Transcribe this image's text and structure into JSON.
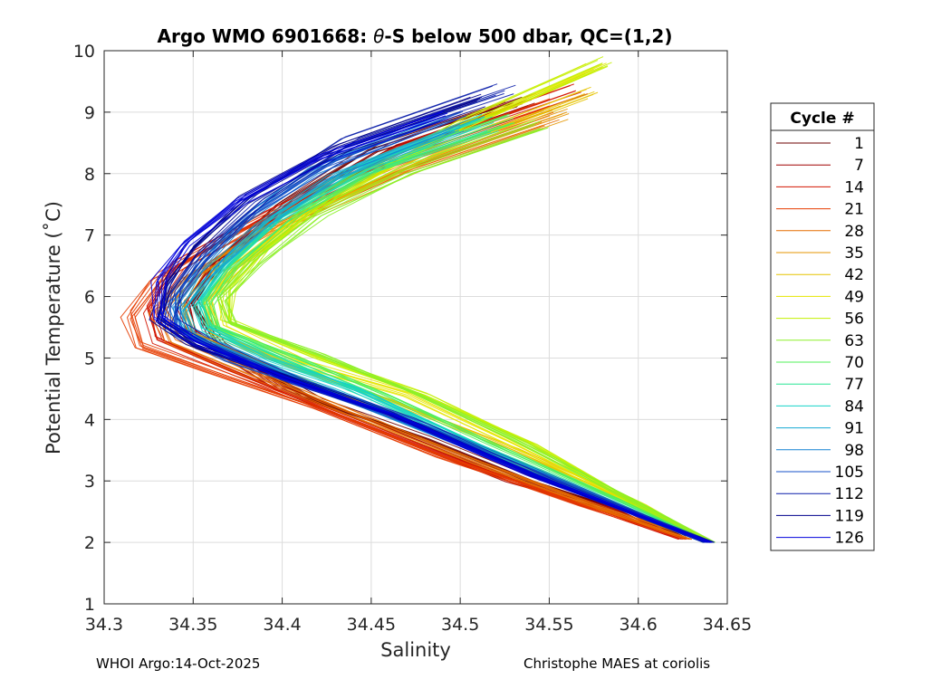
{
  "chart_data": {
    "type": "line",
    "title": "Argo WMO 6901668: θ-S below 500 dbar,  QC=(1,2)",
    "title_prefix": "Argo WMO 6901668: ",
    "title_theta": "θ",
    "title_suffix": "-S below 500 dbar,  QC=(1,2)",
    "xlabel": "Salinity",
    "ylabel": "Potential Temperature (˚C)",
    "xlim": [
      34.3,
      34.65
    ],
    "ylim": [
      1,
      10
    ],
    "xticks": [
      "34.3",
      "34.35",
      "34.4",
      "34.45",
      "34.5",
      "34.55",
      "34.6",
      "34.65"
    ],
    "xtick_values": [
      34.3,
      34.35,
      34.4,
      34.45,
      34.5,
      34.55,
      34.6,
      34.65
    ],
    "yticks": [
      "1",
      "2",
      "3",
      "4",
      "5",
      "6",
      "7",
      "8",
      "9",
      "10"
    ],
    "ytick_values": [
      1,
      2,
      3,
      4,
      5,
      6,
      7,
      8,
      9,
      10
    ],
    "grid": true,
    "colormap": "jet",
    "legend_placement": "right-outside",
    "legend": {
      "title": "Cycle #",
      "entries": [
        "1",
        "7",
        "14",
        "21",
        "28",
        "35",
        "42",
        "49",
        "56",
        "63",
        "70",
        "77",
        "84",
        "91",
        "98",
        "105",
        "112",
        "119",
        "126"
      ],
      "colors": [
        "#6e0000",
        "#a00000",
        "#d21400",
        "#e63c00",
        "#e66e00",
        "#e69600",
        "#e6c300",
        "#e6e600",
        "#c3f000",
        "#8cf028",
        "#50f05a",
        "#28e696",
        "#14d2c8",
        "#14aad2",
        "#1482d2",
        "#1450c8",
        "#0a1eaa",
        "#00008c",
        "#0000dc"
      ]
    },
    "series_description": "About 126 profile curves colored by cycle number. Typical profile: from warm/salty water (S≈34.50–34.58, θ≈8.5–9.8) salinity decreases to a minimum (S≈34.33–34.37) near θ≈5.5–6, then increases again toward S≈34.62–34.64 at θ≈2.0.",
    "series": [
      {
        "name": "1",
        "points": [
          [
            34.53,
            9.15
          ],
          [
            34.45,
            8.4
          ],
          [
            34.4,
            7.5
          ],
          [
            34.365,
            6.6
          ],
          [
            34.35,
            5.9
          ],
          [
            34.365,
            5.2
          ],
          [
            34.42,
            4.3
          ],
          [
            34.48,
            3.7
          ],
          [
            34.54,
            3.0
          ],
          [
            34.6,
            2.45
          ],
          [
            34.625,
            2.1
          ]
        ]
      },
      {
        "name": "7",
        "points": [
          [
            34.54,
            9.2
          ],
          [
            34.46,
            8.4
          ],
          [
            34.4,
            7.4
          ],
          [
            34.36,
            6.5
          ],
          [
            34.345,
            5.9
          ],
          [
            34.35,
            5.4
          ],
          [
            34.4,
            4.5
          ],
          [
            34.46,
            3.8
          ],
          [
            34.53,
            3.0
          ],
          [
            34.59,
            2.5
          ],
          [
            34.62,
            2.1
          ]
        ]
      },
      {
        "name": "14",
        "points": [
          [
            34.565,
            9.35
          ],
          [
            34.47,
            8.4
          ],
          [
            34.39,
            7.3
          ],
          [
            34.34,
            6.5
          ],
          [
            34.325,
            5.8
          ],
          [
            34.33,
            5.3
          ],
          [
            34.37,
            4.8
          ],
          [
            34.43,
            4.1
          ],
          [
            34.5,
            3.3
          ],
          [
            34.57,
            2.6
          ],
          [
            34.625,
            2.05
          ]
        ]
      },
      {
        "name": "21",
        "points": [
          [
            34.55,
            9.1
          ],
          [
            34.46,
            8.2
          ],
          [
            34.38,
            7.1
          ],
          [
            34.33,
            6.3
          ],
          [
            34.315,
            5.7
          ],
          [
            34.32,
            5.2
          ],
          [
            34.36,
            4.8
          ],
          [
            34.42,
            4.2
          ],
          [
            34.49,
            3.4
          ],
          [
            34.57,
            2.6
          ],
          [
            34.63,
            2.05
          ]
        ]
      },
      {
        "name": "28",
        "points": [
          [
            34.55,
            8.9
          ],
          [
            34.47,
            8.1
          ],
          [
            34.39,
            7.1
          ],
          [
            34.345,
            6.3
          ],
          [
            34.33,
            5.8
          ],
          [
            34.34,
            5.3
          ],
          [
            34.38,
            4.8
          ],
          [
            34.44,
            4.1
          ],
          [
            34.51,
            3.3
          ],
          [
            34.58,
            2.55
          ],
          [
            34.63,
            2.05
          ]
        ]
      },
      {
        "name": "35",
        "points": [
          [
            34.56,
            9.0
          ],
          [
            34.48,
            8.2
          ],
          [
            34.4,
            7.2
          ],
          [
            34.36,
            6.4
          ],
          [
            34.345,
            5.9
          ],
          [
            34.35,
            5.4
          ],
          [
            34.39,
            4.9
          ],
          [
            34.45,
            4.2
          ],
          [
            34.52,
            3.4
          ],
          [
            34.59,
            2.6
          ],
          [
            34.635,
            2.05
          ]
        ]
      },
      {
        "name": "42",
        "points": [
          [
            34.57,
            9.3
          ],
          [
            34.48,
            8.3
          ],
          [
            34.41,
            7.3
          ],
          [
            34.37,
            6.4
          ],
          [
            34.355,
            5.9
          ],
          [
            34.36,
            5.4
          ],
          [
            34.4,
            4.9
          ],
          [
            34.46,
            4.3
          ],
          [
            34.53,
            3.5
          ],
          [
            34.6,
            2.6
          ],
          [
            34.64,
            2.0
          ]
        ]
      },
      {
        "name": "49",
        "points": [
          [
            34.575,
            9.7
          ],
          [
            34.49,
            8.6
          ],
          [
            34.42,
            7.5
          ],
          [
            34.38,
            6.6
          ],
          [
            34.36,
            6.0
          ],
          [
            34.365,
            5.5
          ],
          [
            34.41,
            4.9
          ],
          [
            34.47,
            4.4
          ],
          [
            34.53,
            3.6
          ],
          [
            34.6,
            2.6
          ],
          [
            34.64,
            2.0
          ]
        ]
      },
      {
        "name": "56",
        "points": [
          [
            34.58,
            9.8
          ],
          [
            34.5,
            8.8
          ],
          [
            34.43,
            7.7
          ],
          [
            34.39,
            6.8
          ],
          [
            34.37,
            6.1
          ],
          [
            34.37,
            5.6
          ],
          [
            34.42,
            5.0
          ],
          [
            34.48,
            4.4
          ],
          [
            34.54,
            3.6
          ],
          [
            34.6,
            2.6
          ],
          [
            34.64,
            2.0
          ]
        ]
      },
      {
        "name": "63",
        "points": [
          [
            34.545,
            8.85
          ],
          [
            34.47,
            8.1
          ],
          [
            34.42,
            7.4
          ],
          [
            34.385,
            6.6
          ],
          [
            34.365,
            6.0
          ],
          [
            34.37,
            5.6
          ],
          [
            34.42,
            5.1
          ],
          [
            34.47,
            4.5
          ],
          [
            34.53,
            3.7
          ],
          [
            34.6,
            2.65
          ],
          [
            34.64,
            2.0
          ]
        ]
      },
      {
        "name": "70",
        "points": [
          [
            34.53,
            8.9
          ],
          [
            34.46,
            8.2
          ],
          [
            34.41,
            7.4
          ],
          [
            34.375,
            6.5
          ],
          [
            34.36,
            5.9
          ],
          [
            34.365,
            5.5
          ],
          [
            34.41,
            5.0
          ],
          [
            34.46,
            4.4
          ],
          [
            34.52,
            3.6
          ],
          [
            34.59,
            2.7
          ],
          [
            34.64,
            2.0
          ]
        ]
      },
      {
        "name": "77",
        "points": [
          [
            34.52,
            8.8
          ],
          [
            34.45,
            8.1
          ],
          [
            34.4,
            7.3
          ],
          [
            34.37,
            6.5
          ],
          [
            34.355,
            5.9
          ],
          [
            34.36,
            5.5
          ],
          [
            34.4,
            5.0
          ],
          [
            34.45,
            4.4
          ],
          [
            34.51,
            3.6
          ],
          [
            34.58,
            2.75
          ],
          [
            34.64,
            2.0
          ]
        ]
      },
      {
        "name": "84",
        "points": [
          [
            34.51,
            8.9
          ],
          [
            34.44,
            8.1
          ],
          [
            34.395,
            7.3
          ],
          [
            34.365,
            6.5
          ],
          [
            34.35,
            5.9
          ],
          [
            34.355,
            5.5
          ],
          [
            34.39,
            5.0
          ],
          [
            34.44,
            4.5
          ],
          [
            34.5,
            3.7
          ],
          [
            34.57,
            2.8
          ],
          [
            34.64,
            2.0
          ]
        ]
      },
      {
        "name": "91",
        "points": [
          [
            34.5,
            8.8
          ],
          [
            34.43,
            8.0
          ],
          [
            34.39,
            7.2
          ],
          [
            34.36,
            6.4
          ],
          [
            34.345,
            5.8
          ],
          [
            34.35,
            5.4
          ],
          [
            34.38,
            5.0
          ],
          [
            34.43,
            4.5
          ],
          [
            34.49,
            3.8
          ],
          [
            34.56,
            2.9
          ],
          [
            34.64,
            2.0
          ]
        ]
      },
      {
        "name": "98",
        "points": [
          [
            34.49,
            8.8
          ],
          [
            34.42,
            8.0
          ],
          [
            34.38,
            7.2
          ],
          [
            34.355,
            6.4
          ],
          [
            34.34,
            5.8
          ],
          [
            34.345,
            5.4
          ],
          [
            34.38,
            5.0
          ],
          [
            34.42,
            4.5
          ],
          [
            34.48,
            3.8
          ],
          [
            34.56,
            2.9
          ],
          [
            34.64,
            2.0
          ]
        ]
      },
      {
        "name": "105",
        "points": [
          [
            34.5,
            9.0
          ],
          [
            34.43,
            8.2
          ],
          [
            34.385,
            7.4
          ],
          [
            34.355,
            6.6
          ],
          [
            34.34,
            6.0
          ],
          [
            34.34,
            5.5
          ],
          [
            34.37,
            5.0
          ],
          [
            34.42,
            4.5
          ],
          [
            34.48,
            3.9
          ],
          [
            34.56,
            2.95
          ],
          [
            34.64,
            2.0
          ]
        ]
      },
      {
        "name": "112",
        "points": [
          [
            34.525,
            9.35
          ],
          [
            34.44,
            8.5
          ],
          [
            34.39,
            7.6
          ],
          [
            34.355,
            6.7
          ],
          [
            34.34,
            6.1
          ],
          [
            34.335,
            5.6
          ],
          [
            34.36,
            5.2
          ],
          [
            34.41,
            4.6
          ],
          [
            34.47,
            4.0
          ],
          [
            34.55,
            3.0
          ],
          [
            34.64,
            2.0
          ]
        ]
      },
      {
        "name": "119",
        "points": [
          [
            34.51,
            9.2
          ],
          [
            34.43,
            8.4
          ],
          [
            34.38,
            7.6
          ],
          [
            34.35,
            6.8
          ],
          [
            34.335,
            6.2
          ],
          [
            34.33,
            5.6
          ],
          [
            34.35,
            5.2
          ],
          [
            34.4,
            4.7
          ],
          [
            34.46,
            4.1
          ],
          [
            34.54,
            3.1
          ],
          [
            34.64,
            2.0
          ]
        ]
      },
      {
        "name": "126",
        "points": [
          [
            34.49,
            9.0
          ],
          [
            34.42,
            8.3
          ],
          [
            34.375,
            7.6
          ],
          [
            34.345,
            6.9
          ],
          [
            34.33,
            6.3
          ],
          [
            34.33,
            5.7
          ],
          [
            34.35,
            5.3
          ],
          [
            34.4,
            4.7
          ],
          [
            34.46,
            4.1
          ],
          [
            34.54,
            3.1
          ],
          [
            34.64,
            2.0
          ]
        ]
      }
    ]
  },
  "footer": {
    "left": "WHOI Argo:14-Oct-2025",
    "right": "Christophe MAES at coriolis"
  }
}
